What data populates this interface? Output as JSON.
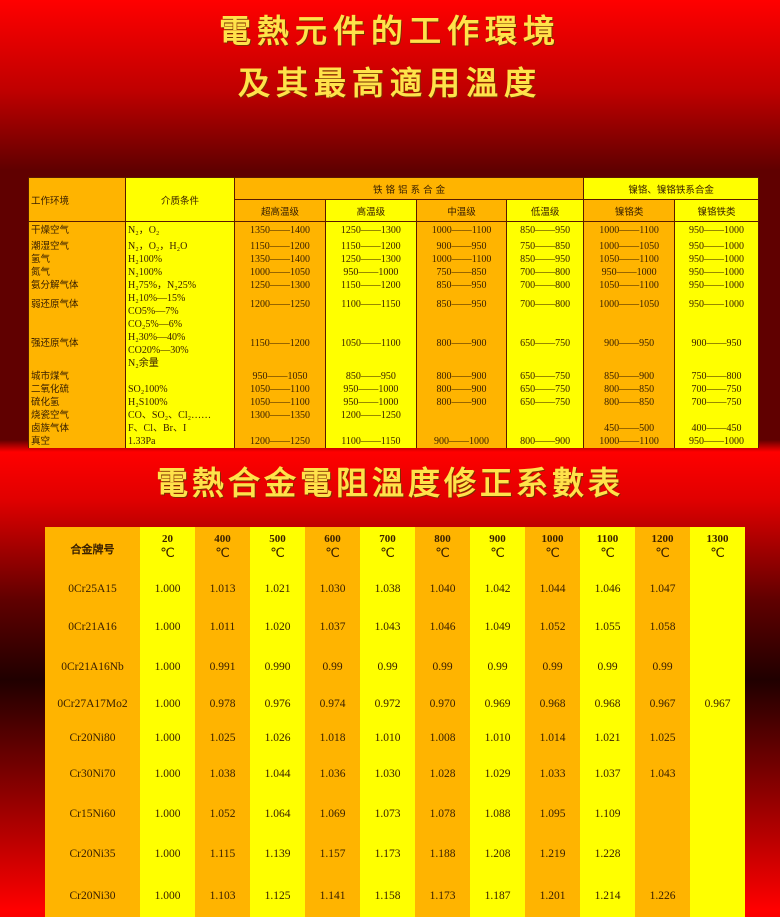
{
  "title1": "電熱元件的工作環境",
  "title2": "及其最高適用溫度",
  "title3": "電熱合金電阻溫度修正系數表",
  "env_table": {
    "col_env": "工作环境",
    "col_medium": "介质条件",
    "group_fecral": "铁 铬 铝 系 合 金",
    "group_nicr": "镍铬、镍铬铁系合金",
    "subheaders": [
      "超高温级",
      "高温级",
      "中温级",
      "低温级",
      "镍铬类",
      "镍铬铁类"
    ],
    "rows": [
      {
        "env": "干燥空气",
        "medium": [
          "N₂，O₂"
        ],
        "values": [
          "1350——1400",
          "1250——1300",
          "1000——1100",
          "850——950",
          "1000——1100",
          "950——1000"
        ]
      },
      {
        "env": "潮湿空气",
        "medium": [
          "N₂，O₂，H₂O"
        ],
        "values": [
          "1150——1200",
          "1150——1200",
          "900——950",
          "750——850",
          "1000——1050",
          "950——1000"
        ]
      },
      {
        "env": "氢气",
        "medium": [
          "H₂100%"
        ],
        "values": [
          "1350——1400",
          "1250——1300",
          "1000——1100",
          "850——950",
          "1050——1100",
          "950——1000"
        ]
      },
      {
        "env": "氮气",
        "medium": [
          "N₂100%"
        ],
        "values": [
          "1000——1050",
          "950——1000",
          "750——850",
          "700——800",
          "950——1000",
          "950——1000"
        ]
      },
      {
        "env": "氨分解气体",
        "medium": [
          "H₂75%，N₂25%"
        ],
        "values": [
          "1250——1300",
          "1150——1200",
          "850——950",
          "700——800",
          "1050——1100",
          "950——1000"
        ]
      },
      {
        "env": "弱还原气体",
        "medium": [
          "H₂10%—15%",
          "CO5%—7%"
        ],
        "values": [
          "1200——1250",
          "1100——1150",
          "850——950",
          "700——800",
          "1000——1050",
          "950——1000"
        ]
      },
      {
        "env": "强还原气体",
        "medium": [
          "CO₂5%—6%",
          "H₂30%—40%",
          "CO20%—30%",
          "N₂余量"
        ],
        "values": [
          "1150——1200",
          "1050——1100",
          "800——900",
          "650——750",
          "900——950",
          "900——950"
        ]
      },
      {
        "env": "城市煤气",
        "medium": [
          ""
        ],
        "values": [
          "950——1050",
          "850——950",
          "800——900",
          "650——750",
          "850——900",
          "750——800"
        ]
      },
      {
        "env": "二氧化硫",
        "medium": [
          "SO₂100%"
        ],
        "values": [
          "1050——1100",
          "950——1000",
          "800——900",
          "650——750",
          "800——850",
          "700——750"
        ]
      },
      {
        "env": "硫化氢",
        "medium": [
          "H₂S100%"
        ],
        "values": [
          "1050——1100",
          "950——1000",
          "800——900",
          "650——750",
          "800——850",
          "700——750"
        ]
      },
      {
        "env": "烧瓷空气",
        "medium": [
          "CO、SO₂、Cl₂……"
        ],
        "values": [
          "1300——1350",
          "1200——1250",
          "",
          "",
          "",
          ""
        ]
      },
      {
        "env": "卤族气体",
        "medium": [
          "F、Cl、Br、I"
        ],
        "values": [
          "",
          "",
          "",
          "",
          "450——500",
          "400——450"
        ]
      },
      {
        "env": "真空",
        "medium": [
          "1.33Pa"
        ],
        "values": [
          "1200——1250",
          "1100——1150",
          "900——1000",
          "800——900",
          "1000——1100",
          "950——1000"
        ]
      }
    ]
  },
  "coef_table": {
    "col_name": "合金牌号",
    "unit": "℃",
    "temps": [
      "20",
      "400",
      "500",
      "600",
      "700",
      "800",
      "900",
      "1000",
      "1100",
      "1200",
      "1300"
    ],
    "rows": [
      {
        "name": "0Cr25A15",
        "values": [
          "1.000",
          "1.013",
          "1.021",
          "1.030",
          "1.038",
          "1.040",
          "1.042",
          "1.044",
          "1.046",
          "1.047",
          ""
        ]
      },
      {
        "name": "0Cr21A16",
        "values": [
          "1.000",
          "1.011",
          "1.020",
          "1.037",
          "1.043",
          "1.046",
          "1.049",
          "1.052",
          "1.055",
          "1.058",
          ""
        ]
      },
      {
        "name": "0Cr21A16Nb",
        "values": [
          "1.000",
          "0.991",
          "0.990",
          "0.99",
          "0.99",
          "0.99",
          "0.99",
          "0.99",
          "0.99",
          "0.99",
          ""
        ]
      },
      {
        "name": "0Cr27A17Mo2",
        "values": [
          "1.000",
          "0.978",
          "0.976",
          "0.974",
          "0.972",
          "0.970",
          "0.969",
          "0.968",
          "0.968",
          "0.967",
          "0.967"
        ]
      },
      {
        "name": "Cr20Ni80",
        "values": [
          "1.000",
          "1.025",
          "1.026",
          "1.018",
          "1.010",
          "1.008",
          "1.010",
          "1.014",
          "1.021",
          "1.025",
          ""
        ]
      },
      {
        "name": "Cr30Ni70",
        "values": [
          "1.000",
          "1.038",
          "1.044",
          "1.036",
          "1.030",
          "1.028",
          "1.029",
          "1.033",
          "1.037",
          "1.043",
          ""
        ]
      },
      {
        "name": "Cr15Ni60",
        "values": [
          "1.000",
          "1.052",
          "1.064",
          "1.069",
          "1.073",
          "1.078",
          "1.088",
          "1.095",
          "1.109",
          "",
          ""
        ]
      },
      {
        "name": "Cr20Ni35",
        "values": [
          "1.000",
          "1.115",
          "1.139",
          "1.157",
          "1.173",
          "1.188",
          "1.208",
          "1.219",
          "1.228",
          "",
          ""
        ]
      },
      {
        "name": "Cr20Ni30",
        "values": [
          "1.000",
          "1.103",
          "1.125",
          "1.141",
          "1.158",
          "1.173",
          "1.187",
          "1.201",
          "1.214",
          "1.226",
          ""
        ]
      }
    ]
  },
  "colors": {
    "orange": "#ffb400",
    "yellow": "#ffff00",
    "title": "#ffe24a",
    "background": "#e00000"
  }
}
